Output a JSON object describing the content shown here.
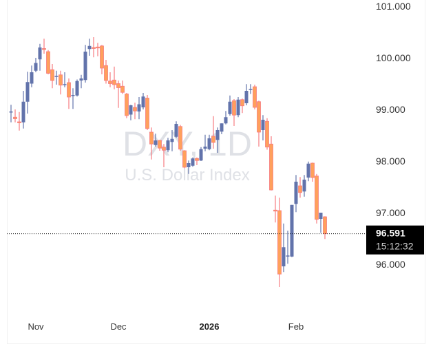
{
  "chart_data": {
    "type": "candlestick",
    "watermark": {
      "symbol": "DXY, 1D",
      "name": "U.S. Dollar Index"
    },
    "ylim": [
      95.25,
      101.1
    ],
    "y_ticks": [
      "101.000",
      "100.000",
      "99.000",
      "98.000",
      "97.000",
      "96.000"
    ],
    "y_tick_values": [
      101,
      100,
      99,
      98,
      97,
      96
    ],
    "x_ticks": [
      {
        "label": "Nov",
        "candle_index": 6,
        "bold": false
      },
      {
        "label": "Dec",
        "candle_index": 26,
        "bold": false
      },
      {
        "label": "2026",
        "candle_index": 48,
        "bold": true
      },
      {
        "label": "Feb",
        "candle_index": 69,
        "bold": false
      }
    ],
    "last_price": {
      "value": 96.591,
      "label": "96.591",
      "countdown": "15:12:32"
    },
    "colors": {
      "up": "#6273ab",
      "down_border": "#f77c80",
      "down_fill": "#ffa05c",
      "label_bg": "#000000"
    },
    "grid": false,
    "candles_ohlc": [
      [
        98.95,
        99.09,
        98.75,
        98.96
      ],
      [
        98.85,
        99.0,
        98.75,
        98.82
      ],
      [
        98.76,
        98.95,
        98.59,
        98.75
      ],
      [
        98.75,
        99.36,
        98.63,
        99.15
      ],
      [
        99.15,
        99.73,
        98.92,
        99.53
      ],
      [
        99.5,
        99.85,
        99.43,
        99.72
      ],
      [
        99.75,
        100.0,
        99.72,
        99.9
      ],
      [
        99.97,
        100.27,
        99.75,
        100.2
      ],
      [
        100.18,
        100.37,
        100.08,
        100.17
      ],
      [
        100.12,
        100.15,
        99.68,
        99.7
      ],
      [
        99.77,
        99.88,
        99.41,
        99.56
      ],
      [
        99.63,
        99.75,
        99.48,
        99.65
      ],
      [
        99.67,
        99.75,
        99.29,
        99.47
      ],
      [
        99.47,
        99.72,
        99.43,
        99.49
      ],
      [
        99.52,
        99.6,
        99.01,
        99.24
      ],
      [
        99.26,
        99.41,
        99.01,
        99.28
      ],
      [
        99.27,
        99.58,
        99.25,
        99.55
      ],
      [
        99.56,
        99.67,
        99.41,
        99.6
      ],
      [
        99.57,
        100.25,
        99.52,
        100.12
      ],
      [
        100.17,
        100.37,
        100.04,
        100.23
      ],
      [
        100.2,
        100.4,
        100.01,
        100.19
      ],
      [
        100.21,
        100.29,
        100.03,
        100.2
      ],
      [
        100.23,
        100.25,
        99.68,
        99.8
      ],
      [
        99.85,
        99.96,
        99.5,
        99.56
      ],
      [
        99.55,
        99.72,
        99.43,
        99.5
      ],
      [
        99.57,
        99.83,
        99.39,
        99.48
      ],
      [
        99.5,
        99.56,
        99.03,
        99.42
      ],
      [
        99.45,
        99.56,
        99.3,
        99.33
      ],
      [
        99.3,
        99.32,
        98.83,
        98.88
      ],
      [
        98.9,
        99.09,
        98.79,
        99.08
      ],
      [
        99.04,
        99.13,
        98.81,
        98.97
      ],
      [
        98.96,
        99.24,
        98.81,
        99.1
      ],
      [
        99.04,
        99.32,
        99.0,
        99.25
      ],
      [
        99.22,
        99.28,
        98.6,
        98.63
      ],
      [
        98.56,
        98.65,
        98.03,
        98.33
      ],
      [
        98.31,
        98.53,
        98.28,
        98.4
      ],
      [
        98.4,
        98.41,
        98.2,
        98.25
      ],
      [
        98.27,
        98.33,
        97.88,
        98.21
      ],
      [
        98.21,
        98.45,
        98.17,
        98.4
      ],
      [
        98.37,
        98.6,
        98.19,
        98.43
      ],
      [
        98.47,
        98.77,
        98.45,
        98.72
      ],
      [
        98.67,
        98.7,
        98.2,
        98.23
      ],
      [
        98.2,
        98.21,
        97.86,
        97.88
      ],
      [
        97.88,
        98.01,
        97.75,
        97.96
      ],
      [
        97.91,
        98.07,
        97.89,
        98.05
      ],
      [
        98.05,
        98.07,
        97.92,
        98.01
      ],
      [
        98.01,
        98.27,
        98.0,
        98.23
      ],
      [
        98.24,
        98.51,
        98.19,
        98.28
      ],
      [
        98.23,
        98.51,
        98.21,
        98.44
      ],
      [
        98.48,
        98.87,
        98.24,
        98.36
      ],
      [
        98.41,
        98.65,
        98.16,
        98.6
      ],
      [
        98.57,
        98.73,
        98.52,
        98.73
      ],
      [
        98.73,
        98.97,
        98.71,
        98.85
      ],
      [
        98.91,
        99.27,
        98.88,
        99.15
      ],
      [
        99.17,
        99.2,
        98.68,
        98.89
      ],
      [
        98.89,
        99.24,
        98.85,
        99.19
      ],
      [
        99.19,
        99.21,
        98.93,
        99.07
      ],
      [
        99.12,
        99.49,
        99.08,
        99.36
      ],
      [
        99.39,
        99.49,
        99.3,
        99.4
      ],
      [
        99.44,
        99.48,
        99.0,
        99.04
      ],
      [
        99.15,
        99.17,
        98.28,
        98.56
      ],
      [
        98.6,
        98.89,
        98.4,
        98.8
      ],
      [
        98.77,
        98.83,
        98.22,
        98.27
      ],
      [
        98.33,
        98.48,
        97.43,
        97.44
      ],
      [
        97.05,
        97.33,
        96.81,
        97.04
      ],
      [
        97.04,
        97.29,
        95.56,
        95.81
      ],
      [
        95.96,
        96.79,
        95.85,
        96.33
      ],
      [
        96.16,
        96.65,
        96.01,
        96.17
      ],
      [
        96.15,
        97.15,
        96.14,
        97.15
      ],
      [
        97.17,
        97.73,
        97.01,
        97.6
      ],
      [
        97.52,
        97.69,
        97.29,
        97.39
      ],
      [
        97.41,
        97.73,
        97.31,
        97.64
      ],
      [
        97.68,
        97.99,
        97.61,
        97.95
      ],
      [
        97.96,
        97.97,
        97.6,
        97.68
      ],
      [
        97.71,
        97.75,
        96.79,
        96.87
      ],
      [
        96.88,
        97.0,
        96.61,
        97.0
      ],
      [
        96.92,
        96.93,
        96.49,
        96.591
      ]
    ]
  }
}
